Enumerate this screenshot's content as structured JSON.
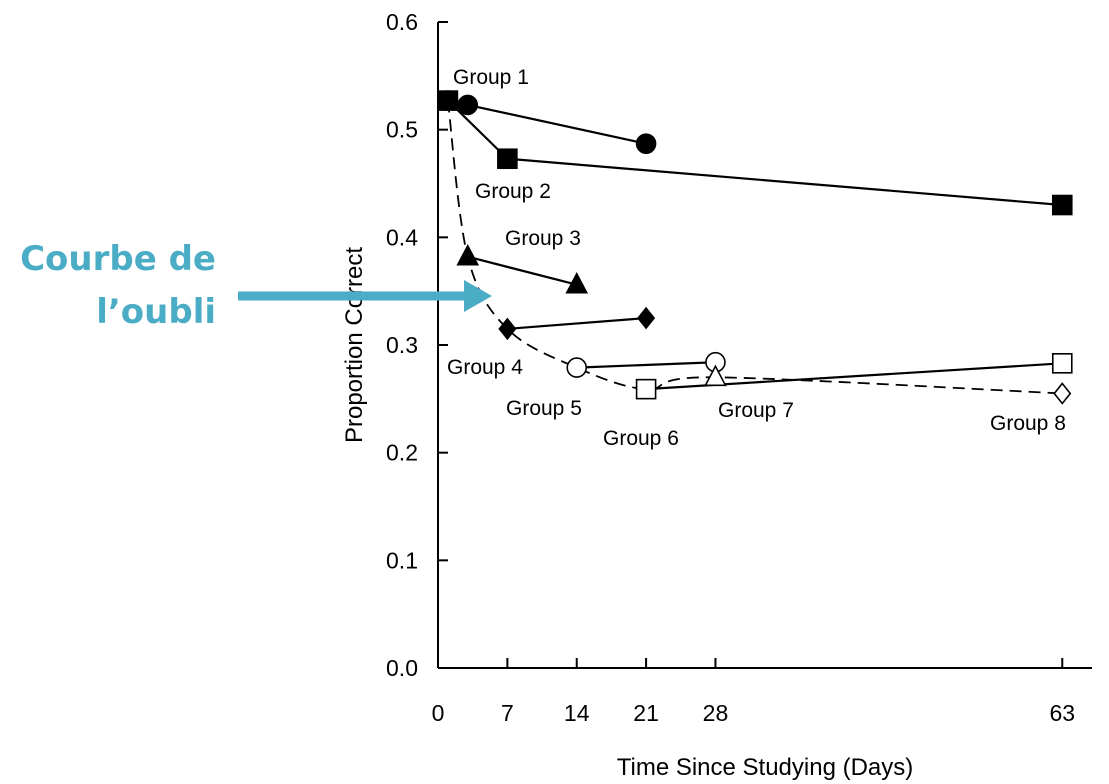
{
  "chart_data": {
    "type": "line",
    "xlabel": "Time Since Studying (Days)",
    "ylabel": "Proportion Correct",
    "xlim": [
      0,
      66
    ],
    "ylim": [
      0,
      0.6
    ],
    "x_ticks": [
      0,
      7,
      14,
      21,
      28,
      63
    ],
    "y_ticks": [
      "0.0",
      "0.1",
      "0.2",
      "0.3",
      "0.4",
      "0.5",
      "0.6"
    ],
    "grid": false,
    "series": [
      {
        "name": "Group 1",
        "marker": "circle",
        "filled": true,
        "points": [
          [
            1,
            0.527
          ],
          [
            3,
            0.523
          ],
          [
            21,
            0.487
          ]
        ]
      },
      {
        "name": "Group 2",
        "marker": "square",
        "filled": true,
        "points": [
          [
            1,
            0.527
          ],
          [
            7,
            0.473
          ],
          [
            63,
            0.43
          ]
        ]
      },
      {
        "name": "Group 3",
        "marker": "triangle",
        "filled": true,
        "points": [
          [
            3,
            0.382
          ],
          [
            14,
            0.356
          ]
        ]
      },
      {
        "name": "Group 4",
        "marker": "diamond",
        "filled": true,
        "points": [
          [
            7,
            0.315
          ],
          [
            21,
            0.325
          ]
        ]
      },
      {
        "name": "Group 5",
        "marker": "circle",
        "filled": false,
        "points": [
          [
            14,
            0.279
          ],
          [
            28,
            0.284
          ]
        ]
      },
      {
        "name": "Group 6",
        "marker": "square",
        "filled": false,
        "points": [
          [
            21,
            0.259
          ],
          [
            63,
            0.283
          ]
        ]
      },
      {
        "name": "Group 7",
        "marker": "triangle",
        "filled": false,
        "points": [
          [
            28,
            0.27
          ]
        ]
      },
      {
        "name": "Group 8",
        "marker": "diamond",
        "filled": false,
        "points": [
          [
            63,
            0.255
          ]
        ]
      }
    ],
    "forgetting_curve": {
      "style": "dashed",
      "points": [
        [
          1,
          0.527
        ],
        [
          3,
          0.382
        ],
        [
          7,
          0.315
        ],
        [
          14,
          0.279
        ],
        [
          21,
          0.259
        ],
        [
          28,
          0.27
        ],
        [
          63,
          0.255
        ]
      ]
    },
    "annotation": {
      "lines": [
        "Courbe de",
        "l’oubli"
      ],
      "color": "#4bacc6"
    }
  }
}
